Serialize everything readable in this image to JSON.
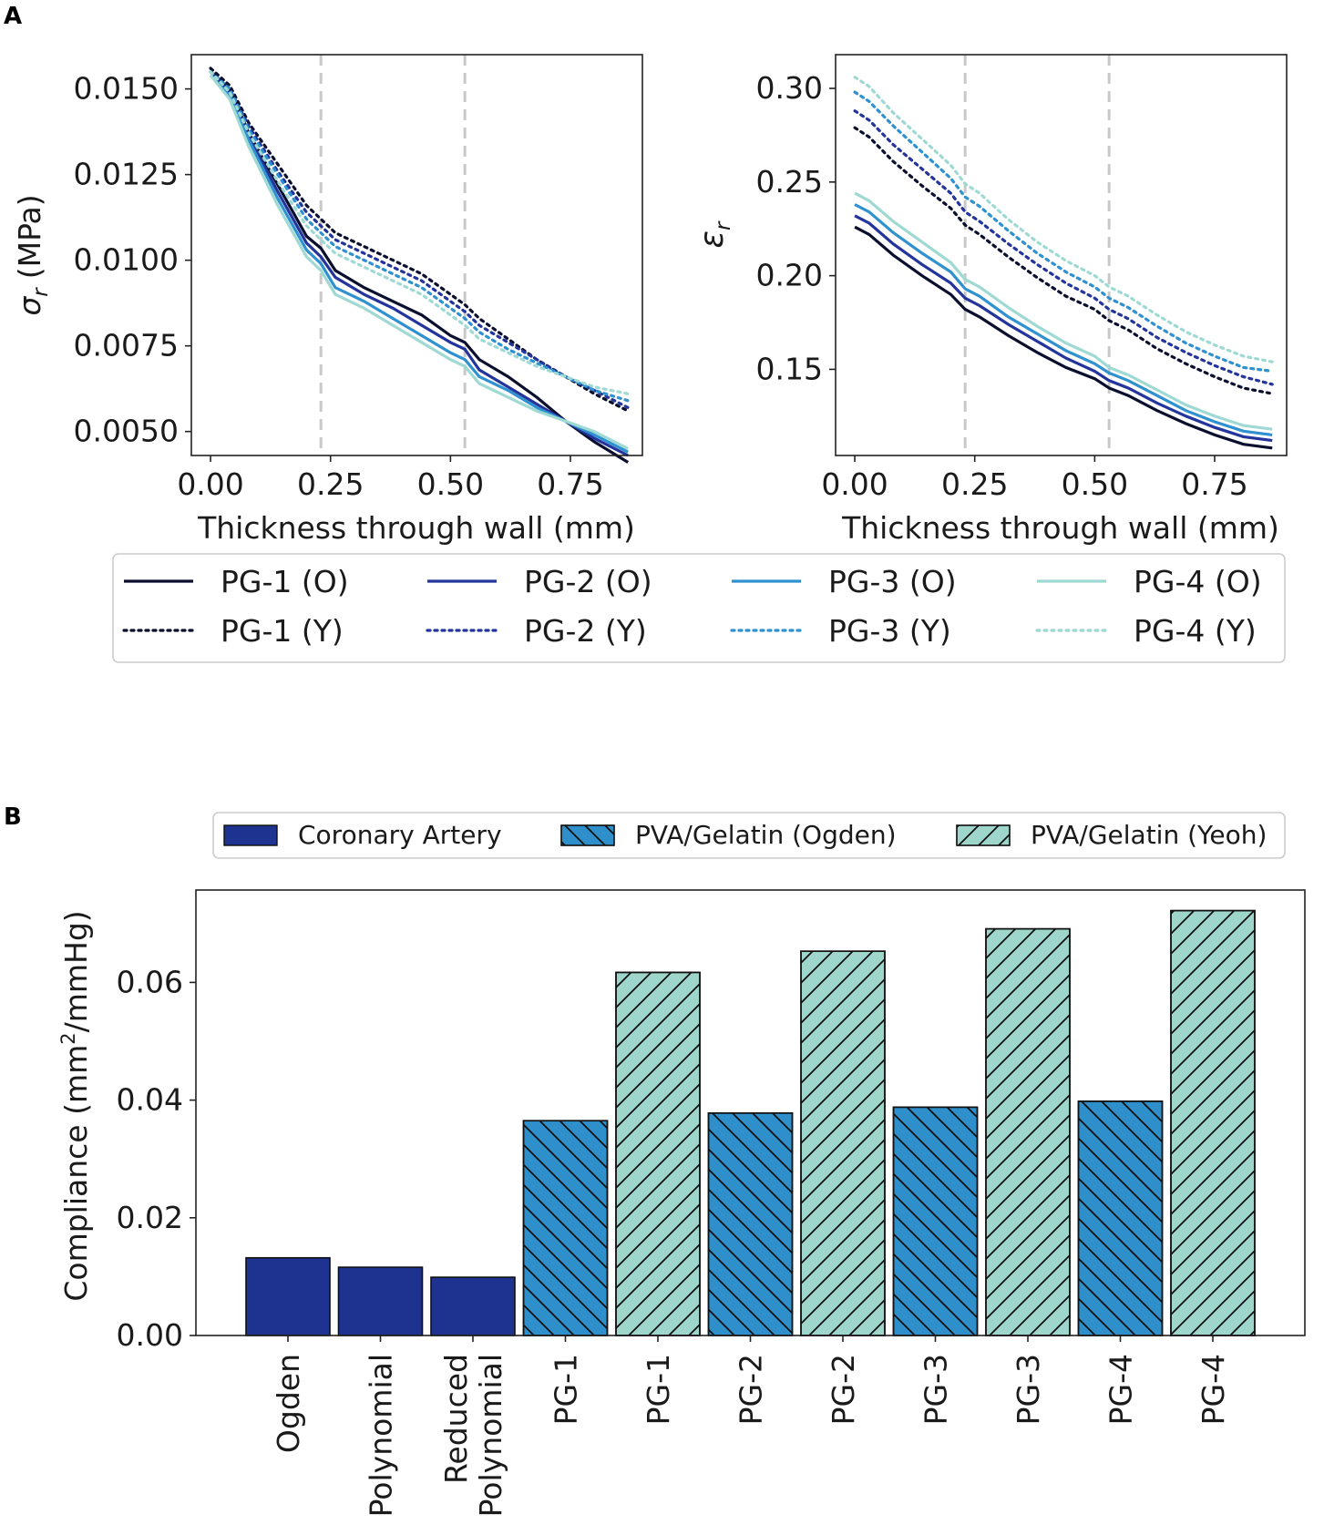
{
  "panels": {
    "a": "A",
    "b": "B"
  },
  "colors": {
    "pg1": "#0b0f2e",
    "pg2": "#23349c",
    "pg3": "#2f91cf",
    "pg4": "#9fd9d4",
    "coronary": "#1e3390",
    "ogden_bar": "#2f8fca",
    "yeoh_bar": "#9fd6cc",
    "divider": "#c8c8c8"
  },
  "legend_top": [
    {
      "label": "PG-1 (O)",
      "color": "#0b0f2e",
      "dash": "solid"
    },
    {
      "label": "PG-2 (O)",
      "color": "#23349c",
      "dash": "solid"
    },
    {
      "label": "PG-3 (O)",
      "color": "#2f91cf",
      "dash": "solid"
    },
    {
      "label": "PG-4 (O)",
      "color": "#9fd9d4",
      "dash": "solid"
    },
    {
      "label": "PG-1 (Y)",
      "color": "#0b0f2e",
      "dash": "dotted"
    },
    {
      "label": "PG-2 (Y)",
      "color": "#23349c",
      "dash": "dotted"
    },
    {
      "label": "PG-3 (Y)",
      "color": "#2f91cf",
      "dash": "dotted"
    },
    {
      "label": "PG-4 (Y)",
      "color": "#9fd9d4",
      "dash": "dotted"
    }
  ],
  "legend_bottom": [
    {
      "label": "Coronary Artery",
      "pattern": "solid"
    },
    {
      "label": "PVA/Gelatin (Ogden)",
      "pattern": "backslash"
    },
    {
      "label": "PVA/Gelatin (Yeoh)",
      "pattern": "slash"
    }
  ],
  "chart_data": [
    {
      "type": "line",
      "id": "stress",
      "title": "",
      "xlabel": "Thickness through wall (mm)",
      "ylabel_symbol": "σ",
      "ylabel_sub": "r",
      "ylabel_unit": "(MPa)",
      "xlim": [
        -0.04,
        0.9
      ],
      "ylim": [
        0.0043,
        0.016
      ],
      "xticks": [
        0,
        0.25,
        0.5,
        0.75
      ],
      "xtick_labels": [
        "0.00",
        "0.25",
        "0.50",
        "0.75"
      ],
      "yticks": [
        0.015,
        0.0125,
        0.01,
        0.0075,
        0.005
      ],
      "ytick_labels": [
        "0.0150",
        "0.0125",
        "0.0100",
        "0.0075",
        "0.0050"
      ],
      "vlines": [
        0.23,
        0.53
      ],
      "x": [
        0,
        0.04,
        0.08,
        0.14,
        0.2,
        0.23,
        0.26,
        0.32,
        0.38,
        0.44,
        0.5,
        0.53,
        0.56,
        0.62,
        0.68,
        0.74,
        0.8,
        0.87
      ],
      "series": [
        {
          "name": "PG-1 (O)",
          "color": "#0b0f2e",
          "dash": "solid",
          "values": [
            0.0155,
            0.015,
            0.0137,
            0.0122,
            0.0107,
            0.01035,
            0.0097,
            0.0092,
            0.0088,
            0.0084,
            0.0078,
            0.0076,
            0.0071,
            0.0066,
            0.006,
            0.0053,
            0.0047,
            0.0041
          ]
        },
        {
          "name": "PG-2 (O)",
          "color": "#23349c",
          "dash": "solid",
          "values": [
            0.0155,
            0.0149,
            0.0136,
            0.012,
            0.0105,
            0.0101,
            0.0095,
            0.009,
            0.0086,
            0.0081,
            0.0076,
            0.0074,
            0.0068,
            0.0063,
            0.0058,
            0.0053,
            0.0048,
            0.0043
          ]
        },
        {
          "name": "PG-3 (O)",
          "color": "#2f91cf",
          "dash": "solid",
          "values": [
            0.0154,
            0.0148,
            0.0135,
            0.0118,
            0.0103,
            0.0099,
            0.0092,
            0.0088,
            0.0083,
            0.0078,
            0.0073,
            0.0071,
            0.0066,
            0.0062,
            0.0057,
            0.0053,
            0.0049,
            0.0044
          ]
        },
        {
          "name": "PG-4 (O)",
          "color": "#9fd9d4",
          "dash": "solid",
          "values": [
            0.0154,
            0.0147,
            0.0133,
            0.0116,
            0.0101,
            0.0097,
            0.009,
            0.0086,
            0.0081,
            0.0076,
            0.0071,
            0.0069,
            0.0064,
            0.006,
            0.0056,
            0.0053,
            0.005,
            0.0045
          ]
        },
        {
          "name": "PG-1 (Y)",
          "color": "#0b0f2e",
          "dash": "dotted",
          "values": [
            0.0156,
            0.0151,
            0.014,
            0.0128,
            0.0116,
            0.0112,
            0.0108,
            0.0104,
            0.01,
            0.0096,
            0.009,
            0.0087,
            0.0083,
            0.0077,
            0.0071,
            0.0066,
            0.0061,
            0.0056
          ]
        },
        {
          "name": "PG-2 (Y)",
          "color": "#23349c",
          "dash": "dotted",
          "values": [
            0.0155,
            0.015,
            0.0139,
            0.0126,
            0.0114,
            0.011,
            0.0106,
            0.0102,
            0.0098,
            0.0094,
            0.0088,
            0.0085,
            0.0081,
            0.0076,
            0.0071,
            0.0066,
            0.0062,
            0.0057
          ]
        },
        {
          "name": "PG-3 (Y)",
          "color": "#2f91cf",
          "dash": "dotted",
          "values": [
            0.0155,
            0.015,
            0.0138,
            0.0125,
            0.0112,
            0.0108,
            0.0104,
            0.01,
            0.0096,
            0.0092,
            0.0086,
            0.0083,
            0.0079,
            0.0074,
            0.007,
            0.0066,
            0.0062,
            0.0059
          ]
        },
        {
          "name": "PG-4 (Y)",
          "color": "#9fd9d4",
          "dash": "dotted",
          "values": [
            0.0155,
            0.0149,
            0.0137,
            0.0123,
            0.011,
            0.0106,
            0.0102,
            0.0098,
            0.0094,
            0.009,
            0.0084,
            0.0081,
            0.0077,
            0.0073,
            0.0069,
            0.0066,
            0.0063,
            0.0061
          ]
        }
      ]
    },
    {
      "type": "line",
      "id": "strain",
      "title": "",
      "xlabel": "Thickness through wall (mm)",
      "ylabel_symbol": "ε",
      "ylabel_sub": "r",
      "ylabel_unit": "",
      "xlim": [
        -0.04,
        0.9
      ],
      "ylim": [
        0.104,
        0.318
      ],
      "xticks": [
        0,
        0.25,
        0.5,
        0.75
      ],
      "xtick_labels": [
        "0.00",
        "0.25",
        "0.50",
        "0.75"
      ],
      "yticks": [
        0.3,
        0.25,
        0.2,
        0.15
      ],
      "ytick_labels": [
        "0.30",
        "0.25",
        "0.20",
        "0.15"
      ],
      "vlines": [
        0.23,
        0.53
      ],
      "x": [
        0,
        0.03,
        0.08,
        0.14,
        0.2,
        0.23,
        0.26,
        0.32,
        0.38,
        0.44,
        0.5,
        0.53,
        0.57,
        0.63,
        0.69,
        0.75,
        0.81,
        0.87
      ],
      "series": [
        {
          "name": "PG-1 (O)",
          "color": "#0b0f2e",
          "dash": "solid",
          "values": [
            0.226,
            0.222,
            0.211,
            0.2,
            0.19,
            0.182,
            0.178,
            0.168,
            0.159,
            0.151,
            0.145,
            0.14,
            0.136,
            0.128,
            0.121,
            0.115,
            0.11,
            0.108
          ]
        },
        {
          "name": "PG-2 (O)",
          "color": "#23349c",
          "dash": "solid",
          "values": [
            0.232,
            0.228,
            0.217,
            0.206,
            0.196,
            0.188,
            0.184,
            0.174,
            0.165,
            0.156,
            0.149,
            0.144,
            0.14,
            0.132,
            0.125,
            0.119,
            0.114,
            0.112
          ]
        },
        {
          "name": "PG-3 (O)",
          "color": "#2f91cf",
          "dash": "solid",
          "values": [
            0.238,
            0.234,
            0.223,
            0.212,
            0.202,
            0.193,
            0.189,
            0.178,
            0.169,
            0.16,
            0.153,
            0.148,
            0.144,
            0.136,
            0.128,
            0.122,
            0.117,
            0.115
          ]
        },
        {
          "name": "PG-4 (O)",
          "color": "#9fd9d4",
          "dash": "solid",
          "values": [
            0.244,
            0.24,
            0.229,
            0.218,
            0.207,
            0.198,
            0.194,
            0.183,
            0.173,
            0.164,
            0.157,
            0.151,
            0.147,
            0.139,
            0.131,
            0.125,
            0.12,
            0.118
          ]
        },
        {
          "name": "PG-1 (Y)",
          "color": "#0b0f2e",
          "dash": "dotted",
          "values": [
            0.279,
            0.274,
            0.261,
            0.248,
            0.236,
            0.227,
            0.222,
            0.21,
            0.199,
            0.189,
            0.182,
            0.176,
            0.171,
            0.161,
            0.153,
            0.146,
            0.14,
            0.137
          ]
        },
        {
          "name": "PG-2 (Y)",
          "color": "#23349c",
          "dash": "dotted",
          "values": [
            0.288,
            0.283,
            0.27,
            0.257,
            0.244,
            0.234,
            0.229,
            0.217,
            0.206,
            0.196,
            0.188,
            0.182,
            0.177,
            0.167,
            0.159,
            0.152,
            0.146,
            0.142
          ]
        },
        {
          "name": "PG-3 (Y)",
          "color": "#2f91cf",
          "dash": "dotted",
          "values": [
            0.298,
            0.293,
            0.28,
            0.266,
            0.252,
            0.242,
            0.237,
            0.224,
            0.212,
            0.202,
            0.194,
            0.188,
            0.183,
            0.173,
            0.164,
            0.157,
            0.151,
            0.149
          ]
        },
        {
          "name": "PG-4 (Y)",
          "color": "#9fd9d4",
          "dash": "dotted",
          "values": [
            0.306,
            0.301,
            0.287,
            0.273,
            0.259,
            0.249,
            0.244,
            0.23,
            0.218,
            0.208,
            0.2,
            0.194,
            0.189,
            0.179,
            0.17,
            0.163,
            0.157,
            0.154
          ]
        }
      ]
    },
    {
      "type": "bar",
      "id": "compliance",
      "title": "",
      "xlabel": "",
      "ylabel": "Compliance (mm²/mmHg)",
      "ylabel_base": "Compliance (mm",
      "ylabel_sup": "2",
      "ylabel_tail": "/mmHg)",
      "ylim": [
        0,
        0.0757
      ],
      "yticks": [
        0,
        0.02,
        0.04,
        0.06
      ],
      "ytick_labels": [
        "0.00",
        "0.02",
        "0.04",
        "0.06"
      ],
      "categories": [
        "Ogden",
        "Polynomial",
        "Reduced\nPolynomial",
        "PG-1",
        "PG-1",
        "PG-2",
        "PG-2",
        "PG-3",
        "PG-3",
        "PG-4",
        "PG-4"
      ],
      "category_lines": [
        [
          "Ogden"
        ],
        [
          "Polynomial"
        ],
        [
          "Reduced",
          "Polynomial"
        ],
        [
          "PG-1"
        ],
        [
          "PG-1"
        ],
        [
          "PG-2"
        ],
        [
          "PG-2"
        ],
        [
          "PG-3"
        ],
        [
          "PG-3"
        ],
        [
          "PG-4"
        ],
        [
          "PG-4"
        ]
      ],
      "values": [
        0.0132,
        0.0116,
        0.0099,
        0.0365,
        0.0617,
        0.0378,
        0.0653,
        0.0388,
        0.0691,
        0.0398,
        0.0722
      ],
      "groups": [
        "Coronary Artery",
        "Coronary Artery",
        "Coronary Artery",
        "PVA/Gelatin (Ogden)",
        "PVA/Gelatin (Yeoh)",
        "PVA/Gelatin (Ogden)",
        "PVA/Gelatin (Yeoh)",
        "PVA/Gelatin (Ogden)",
        "PVA/Gelatin (Yeoh)",
        "PVA/Gelatin (Ogden)",
        "PVA/Gelatin (Yeoh)"
      ]
    }
  ]
}
